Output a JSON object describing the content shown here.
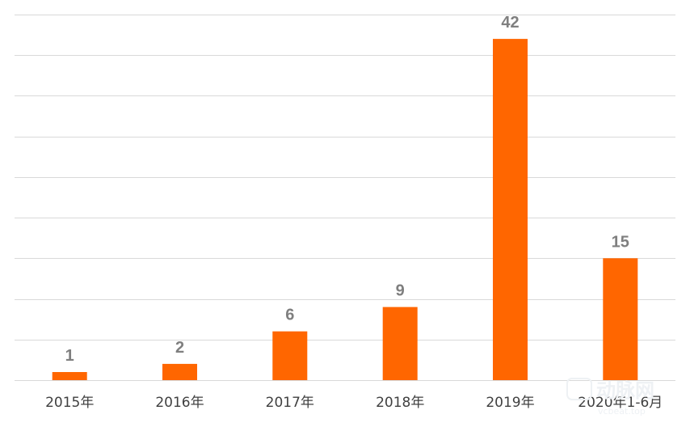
{
  "chart_data": {
    "type": "bar",
    "categories": [
      "2015年",
      "2016年",
      "2017年",
      "2018年",
      "2019年",
      "2020年1-6月"
    ],
    "values": [
      1,
      2,
      6,
      9,
      42,
      15
    ],
    "data_labels": [
      "1",
      "2",
      "6",
      "9",
      "42",
      "15"
    ],
    "ylim": [
      0,
      45
    ],
    "grid": true,
    "bar_color": "#ff6600",
    "title": "",
    "xlabel": "",
    "ylabel": ""
  },
  "watermark": {
    "text": "动脉网",
    "url": "vcbeat.top"
  }
}
